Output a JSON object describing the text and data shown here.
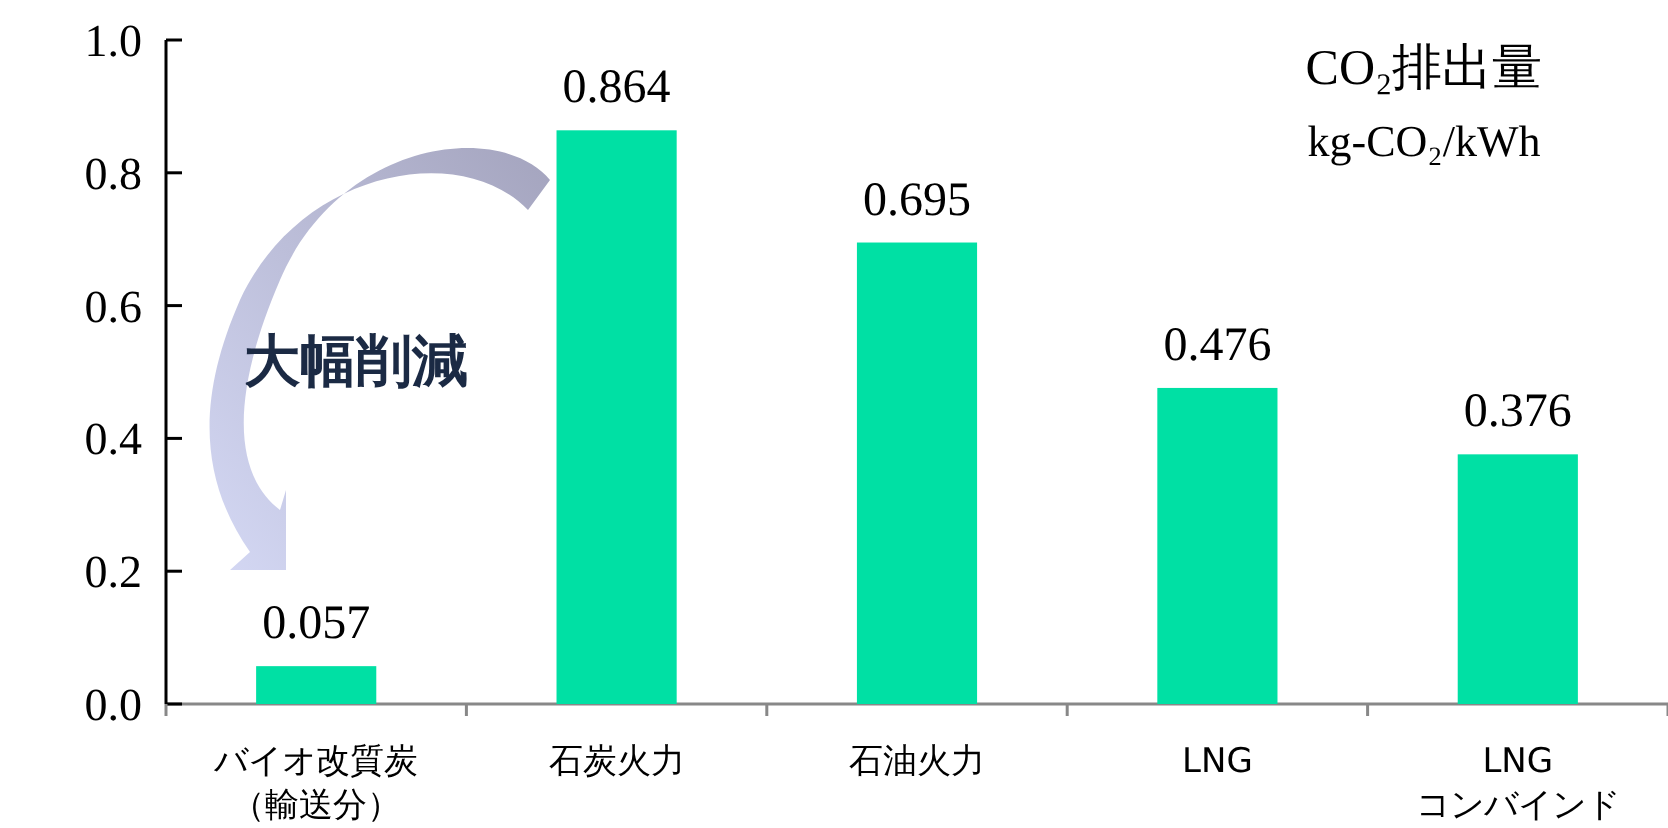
{
  "chart_data": {
    "type": "bar",
    "title": "CO₂排出量",
    "subtitle": "kg-CO₂/kWh",
    "categories": [
      "バイオ改質炭（輸送分）",
      "石炭火力",
      "石油火力",
      "LNG",
      "LNGコンバインド"
    ],
    "values": [
      0.057,
      0.864,
      0.695,
      0.476,
      0.376
    ],
    "color": "#00e0a4",
    "ylim": [
      0,
      1.0
    ],
    "yticks": [
      {
        "value": 0,
        "label": "0.0"
      },
      {
        "value": 0.2,
        "label": "0.2"
      },
      {
        "value": 0.4,
        "label": "0.4"
      },
      {
        "value": 0.6,
        "label": "0.6"
      },
      {
        "value": 0.8,
        "label": "0.8"
      },
      {
        "value": 1.0,
        "label": "1.0"
      }
    ],
    "data_labels": true,
    "annotations": [
      "大幅削減"
    ]
  }
}
